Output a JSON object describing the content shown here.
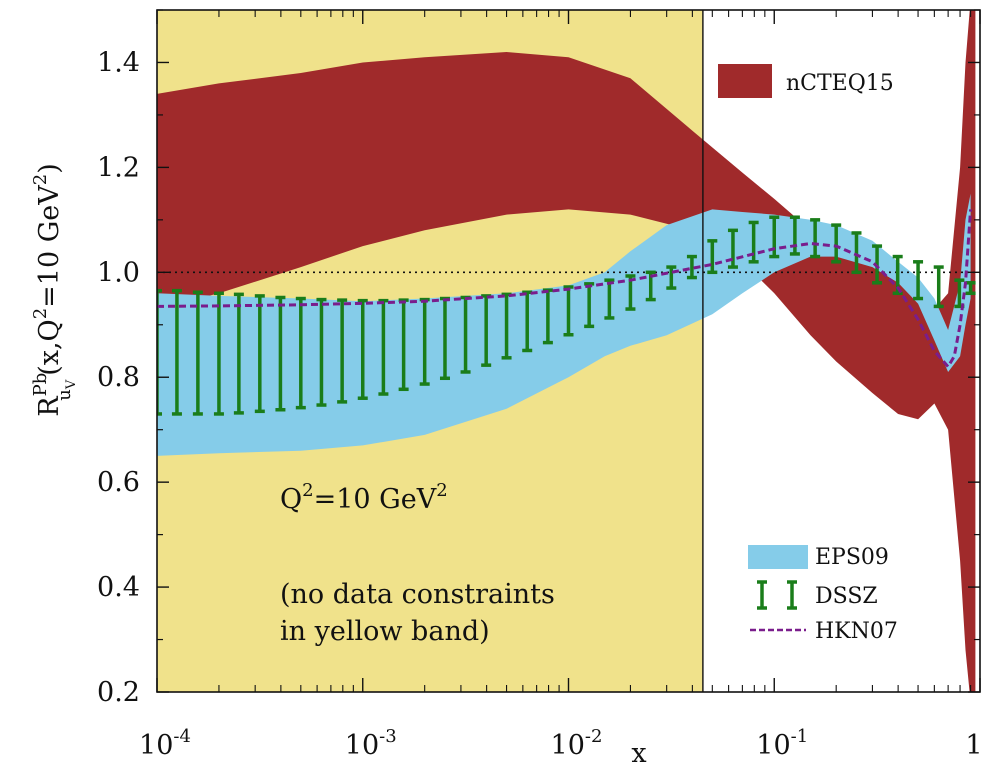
{
  "chart_data": {
    "type": "area",
    "xlabel": "x",
    "ylabel": {
      "main": "R",
      "sup": "Pb",
      "sub": "u",
      "subsub": "V",
      "tail": "(x,Q",
      "tail_sup": "2",
      "tail2": "=10 GeV",
      "tail2_sup": "2",
      "close": ")"
    },
    "x_scale": "log",
    "xlim": [
      0.0001,
      1
    ],
    "ylim": [
      0.2,
      1.5
    ],
    "x_ticks": [
      {
        "value": 0.0001,
        "base": "10",
        "exp": "-4"
      },
      {
        "value": 0.001,
        "base": "10",
        "exp": "-3"
      },
      {
        "value": 0.01,
        "base": "10",
        "exp": "-2"
      },
      {
        "value": 0.1,
        "base": "10",
        "exp": "-1"
      },
      {
        "value": 1,
        "base": "1",
        "exp": ""
      }
    ],
    "y_ticks": [
      {
        "value": 0.2,
        "label": "0.2"
      },
      {
        "value": 0.4,
        "label": "0.4"
      },
      {
        "value": 0.6,
        "label": "0.6"
      },
      {
        "value": 0.8,
        "label": "0.8"
      },
      {
        "value": 1.0,
        "label": "1.0"
      },
      {
        "value": 1.2,
        "label": "1.2"
      },
      {
        "value": 1.4,
        "label": "1.4"
      }
    ],
    "reference_line": 1.0,
    "no_constraint_region": {
      "x_min": 0.0001,
      "x_max": 0.045,
      "color": "#f0e28b"
    },
    "series": [
      {
        "name": "nCTEQ15",
        "kind": "band",
        "color": "#a02a2b",
        "x": [
          0.0001,
          0.0002,
          0.0005,
          0.001,
          0.002,
          0.005,
          0.01,
          0.02,
          0.04,
          0.07,
          0.1,
          0.15,
          0.2,
          0.3,
          0.4,
          0.5,
          0.6,
          0.7,
          0.8,
          0.85,
          0.9,
          0.95
        ],
        "upper": [
          1.34,
          1.36,
          1.38,
          1.4,
          1.41,
          1.42,
          1.41,
          1.37,
          1.27,
          1.19,
          1.14,
          1.08,
          1.05,
          1.02,
          1.0,
          0.97,
          0.93,
          0.96,
          1.2,
          1.4,
          1.52,
          1.5
        ],
        "lower": [
          0.93,
          0.96,
          1.01,
          1.05,
          1.08,
          1.11,
          1.12,
          1.11,
          1.08,
          1.02,
          0.96,
          0.88,
          0.83,
          0.77,
          0.73,
          0.72,
          0.75,
          0.7,
          0.45,
          0.28,
          0.18,
          0.2
        ]
      },
      {
        "name": "EPS09",
        "kind": "band",
        "color": "#85cce9",
        "x": [
          0.0001,
          0.0002,
          0.0005,
          0.001,
          0.002,
          0.005,
          0.01,
          0.015,
          0.02,
          0.03,
          0.05,
          0.07,
          0.1,
          0.15,
          0.2,
          0.3,
          0.4,
          0.5,
          0.6,
          0.7,
          0.8,
          0.85,
          0.9
        ],
        "upper": [
          0.96,
          0.955,
          0.95,
          0.945,
          0.95,
          0.96,
          0.975,
          1.0,
          1.04,
          1.09,
          1.12,
          1.115,
          1.11,
          1.1,
          1.09,
          1.06,
          1.02,
          0.99,
          0.95,
          0.89,
          0.98,
          1.1,
          1.15
        ],
        "lower": [
          0.65,
          0.655,
          0.66,
          0.67,
          0.69,
          0.74,
          0.8,
          0.84,
          0.86,
          0.88,
          0.92,
          0.96,
          1.0,
          1.03,
          1.03,
          1.01,
          0.98,
          0.94,
          0.87,
          0.81,
          0.84,
          0.9,
          0.95
        ]
      },
      {
        "name": "DSSZ",
        "kind": "errorbars",
        "color": "#1a7d1a",
        "x": [
          0.0001,
          0.000125,
          0.000158,
          0.0002,
          0.00025,
          0.000316,
          0.000398,
          0.0005,
          0.00063,
          0.000794,
          0.001,
          0.00126,
          0.00158,
          0.002,
          0.00251,
          0.00316,
          0.00398,
          0.005,
          0.0063,
          0.00794,
          0.01,
          0.0126,
          0.0158,
          0.02,
          0.0251,
          0.0316,
          0.0398,
          0.05,
          0.063,
          0.0794,
          0.1,
          0.126,
          0.158,
          0.2,
          0.251,
          0.316,
          0.398,
          0.5,
          0.63,
          0.794,
          0.9
        ],
        "upper": [
          0.965,
          0.965,
          0.962,
          0.96,
          0.958,
          0.955,
          0.952,
          0.95,
          0.948,
          0.947,
          0.946,
          0.946,
          0.947,
          0.948,
          0.95,
          0.952,
          0.955,
          0.958,
          0.962,
          0.966,
          0.972,
          0.978,
          0.985,
          0.993,
          1.0,
          1.01,
          1.03,
          1.06,
          1.08,
          1.095,
          1.105,
          1.105,
          1.1,
          1.09,
          1.075,
          1.05,
          1.03,
          1.02,
          1.01,
          0.985,
          0.98
        ],
        "lower": [
          0.73,
          0.73,
          0.73,
          0.73,
          0.732,
          0.735,
          0.738,
          0.742,
          0.747,
          0.753,
          0.76,
          0.768,
          0.777,
          0.787,
          0.798,
          0.81,
          0.823,
          0.837,
          0.851,
          0.866,
          0.881,
          0.897,
          0.913,
          0.93,
          0.948,
          0.97,
          0.99,
          1.0,
          1.01,
          1.02,
          1.03,
          1.035,
          1.03,
          1.02,
          1.0,
          0.98,
          0.96,
          0.95,
          0.935,
          0.935,
          0.96
        ]
      },
      {
        "name": "HKN07",
        "kind": "dashed-line",
        "color": "#7a1d8c",
        "x": [
          0.0001,
          0.0002,
          0.0005,
          0.001,
          0.002,
          0.005,
          0.01,
          0.02,
          0.05,
          0.1,
          0.15,
          0.2,
          0.3,
          0.4,
          0.5,
          0.6,
          0.7,
          0.75,
          0.8,
          0.85,
          0.9
        ],
        "y": [
          0.935,
          0.936,
          0.938,
          0.941,
          0.945,
          0.955,
          0.968,
          0.985,
          1.015,
          1.045,
          1.055,
          1.05,
          1.02,
          0.97,
          0.91,
          0.85,
          0.82,
          0.84,
          0.9,
          0.98,
          1.12
        ]
      }
    ],
    "legend": [
      {
        "name": "nCTEQ15",
        "placement": "top-right",
        "kind": "band",
        "color": "#a02a2b"
      },
      {
        "name": "EPS09",
        "placement": "bottom-right",
        "kind": "band",
        "color": "#85cce9"
      },
      {
        "name": "DSSZ",
        "placement": "bottom-right",
        "kind": "errorbars",
        "color": "#1a7d1a"
      },
      {
        "name": "HKN07",
        "placement": "bottom-right",
        "kind": "dashed-line",
        "color": "#7a1d8c"
      }
    ],
    "annotations": {
      "q2": {
        "base": "Q",
        "sup": "2",
        "rest": "=10 GeV",
        "rest_sup": "2"
      },
      "note_line1": "(no data constraints",
      "note_line2": "in yellow band)"
    },
    "grid": false
  }
}
